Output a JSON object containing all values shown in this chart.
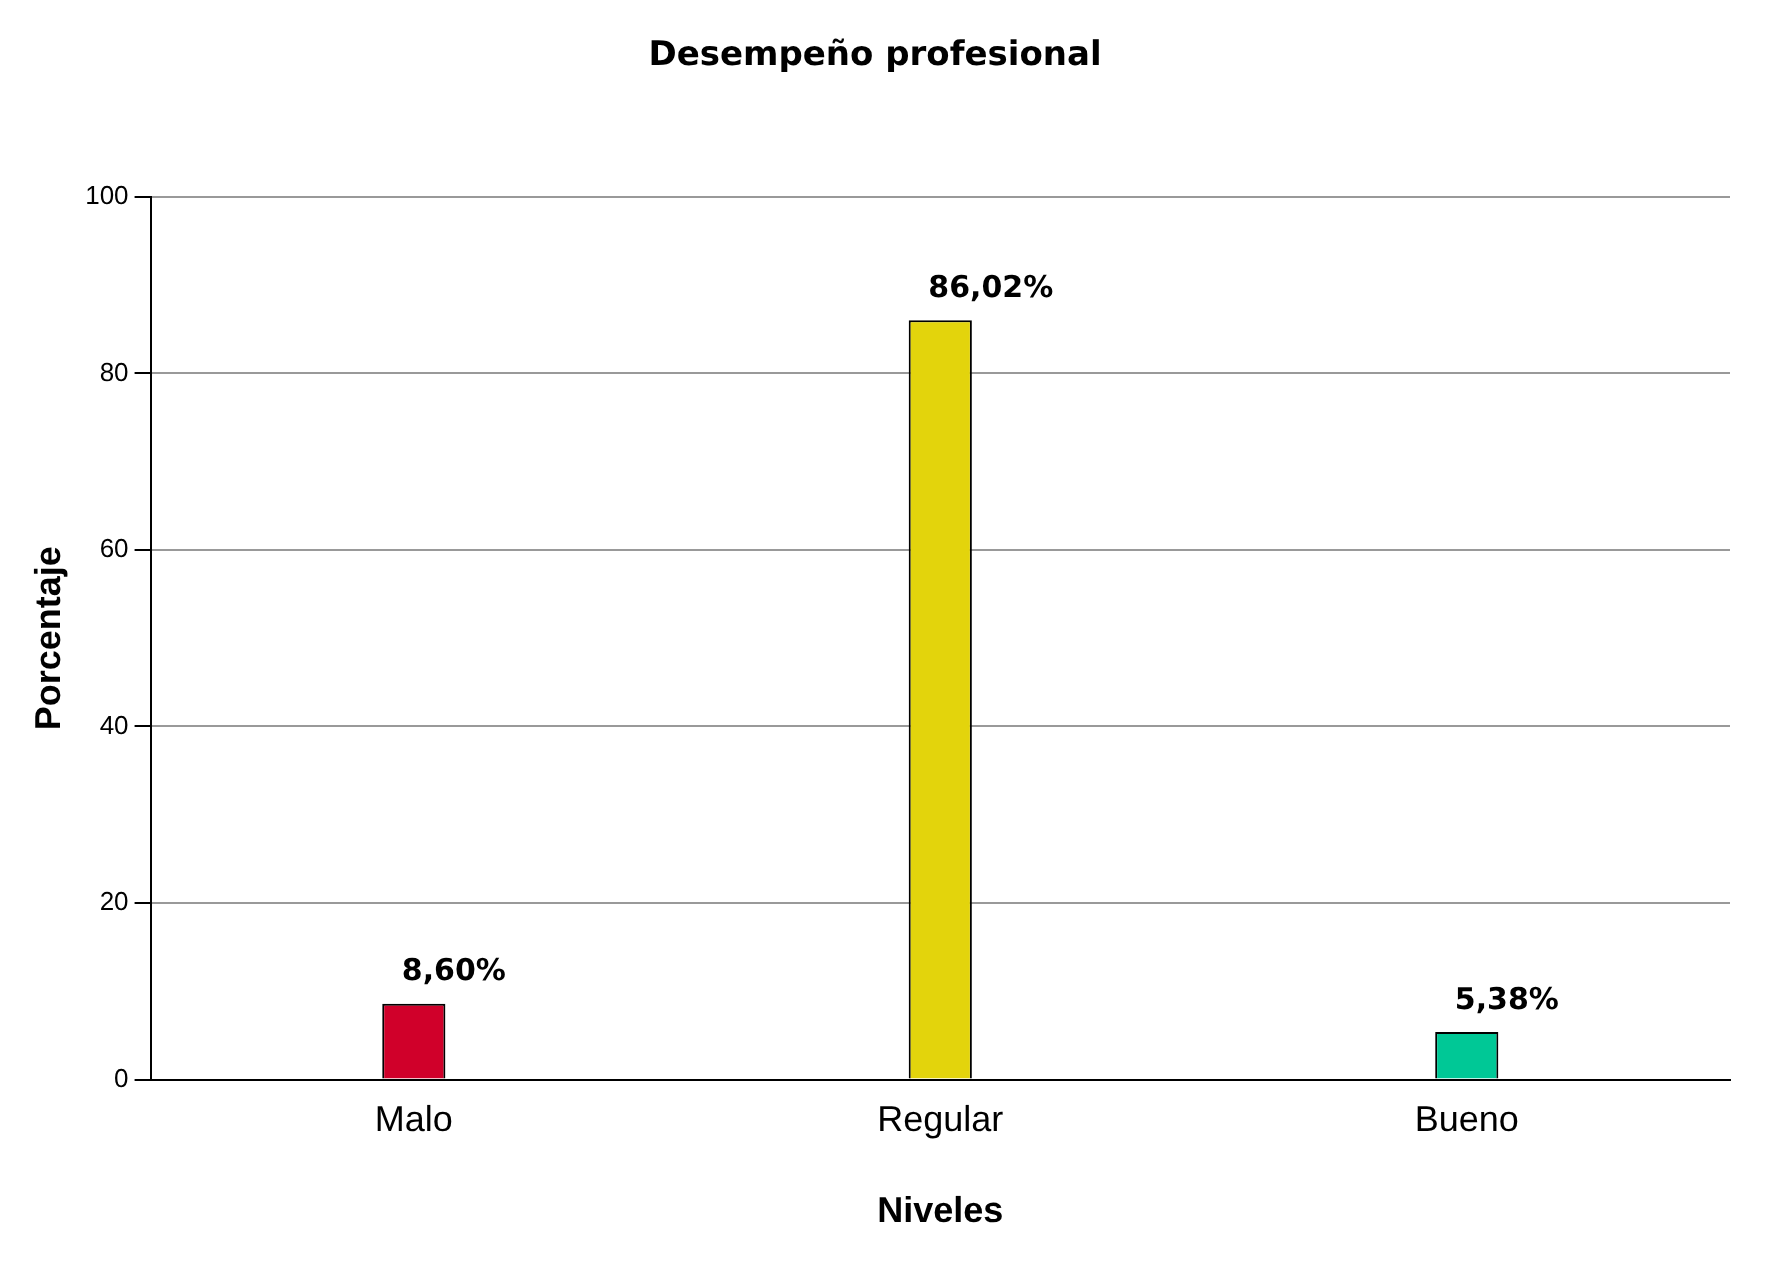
{
  "chart_data": {
    "type": "bar",
    "title": "Desempeño profesional",
    "xlabel": "Niveles",
    "ylabel": "Porcentaje",
    "categories": [
      "Malo",
      "Regular",
      "Bueno"
    ],
    "values": [
      8.6,
      86.02,
      5.38
    ],
    "colors": [
      "#d0002a",
      "#e3d40c",
      "#00c896"
    ],
    "value_labels": [
      "8,60%",
      "86,02%",
      "5,38%"
    ],
    "ylim": [
      0,
      100
    ],
    "yticks": [
      0,
      20,
      40,
      60,
      80,
      100
    ],
    "grid": "y",
    "legend": false
  }
}
